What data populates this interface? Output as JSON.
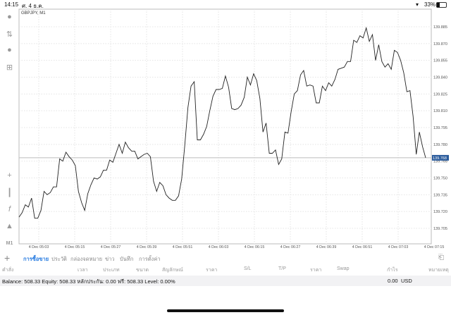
{
  "status_bar": {
    "time": "14:15",
    "date": "ศ. 4 ธ.ค.",
    "battery": "33%"
  },
  "chart": {
    "symbol_label": "GBPJPY, M1",
    "current_price_label": "139.768",
    "accent": "#2a5b9c"
  },
  "left_toolbar": {
    "icons": [
      "account-icon",
      "trade-icon",
      "chat-icon",
      "new-document-icon",
      "crosshair-icon",
      "indicators-icon",
      "function-icon",
      "objects-icon"
    ],
    "timeframe": "M1"
  },
  "chart_data": {
    "type": "line",
    "title": "GBPJPY, M1",
    "ylim": [
      139.7,
      139.89
    ],
    "y_ticks": [
      "139.885",
      "139.870",
      "139.855",
      "139.840",
      "139.825",
      "139.810",
      "139.795",
      "139.780",
      "139.765",
      "139.750",
      "139.735",
      "139.720",
      "139.705"
    ],
    "x_ticks": [
      "4 Dec 05:03",
      "4 Dec 05:15",
      "4 Dec 05:27",
      "4 Dec 05:39",
      "4 Dec 05:51",
      "4 Dec 06:03",
      "4 Dec 06:15",
      "4 Dec 06:27",
      "4 Dec 06:39",
      "4 Dec 06:51",
      "4 Dec 07:03",
      "4 Dec 07:15"
    ],
    "grid": true,
    "current_price": 139.768,
    "values": [
      139.715,
      139.719,
      139.726,
      139.724,
      139.732,
      139.714,
      139.714,
      139.721,
      139.738,
      139.735,
      139.737,
      139.742,
      139.742,
      139.767,
      139.765,
      139.773,
      139.769,
      139.766,
      139.761,
      139.738,
      139.728,
      139.721,
      139.736,
      139.744,
      139.75,
      139.749,
      139.751,
      139.757,
      139.757,
      139.766,
      139.764,
      139.772,
      139.78,
      139.772,
      139.782,
      139.777,
      139.774,
      139.774,
      139.767,
      139.769,
      139.771,
      139.772,
      139.769,
      139.747,
      139.738,
      139.746,
      139.743,
      139.735,
      139.732,
      139.73,
      139.73,
      139.734,
      139.749,
      139.779,
      139.813,
      139.832,
      139.836,
      139.784,
      139.784,
      139.789,
      139.796,
      139.81,
      139.823,
      139.829,
      139.829,
      139.83,
      139.841,
      139.831,
      139.812,
      139.811,
      139.812,
      139.815,
      139.822,
      139.84,
      139.833,
      139.843,
      139.837,
      139.821,
      139.791,
      139.799,
      139.772,
      139.772,
      139.775,
      139.762,
      139.767,
      139.791,
      139.79,
      139.809,
      139.825,
      139.828,
      139.842,
      139.846,
      139.832,
      139.833,
      139.832,
      139.817,
      139.817,
      139.832,
      139.828,
      139.835,
      139.832,
      139.838,
      139.847,
      139.848,
      139.849,
      139.854,
      139.854,
      139.873,
      139.871,
      139.877,
      139.875,
      139.884,
      139.872,
      139.878,
      139.855,
      139.869,
      139.854,
      139.849,
      139.852,
      139.847,
      139.864,
      139.862,
      139.855,
      139.844,
      139.827,
      139.828,
      139.805,
      139.771,
      139.791,
      139.778,
      139.768
    ]
  },
  "bottom_panel": {
    "tabs": [
      "การซื้อขาย",
      "ประวัติ",
      "กล่องจดหมาย",
      "ข่าว",
      "บันทึก",
      "การตั้งค่า"
    ],
    "columns": [
      "คำสั่ง",
      "เวลา",
      "ประเภท",
      "ขนาด",
      "สัญลักษณ์",
      "ราคา",
      "S/L",
      "T/P",
      "ราคา",
      "Swap",
      "กำไร",
      "หมายเหตุ"
    ],
    "balance_text": "Balance: 508.33 Equity: 508.33 หลักประกัน: 0.00 ฟรี: 508.33 Level: 0.00%",
    "profit_total": "0.00",
    "currency": "USD"
  }
}
